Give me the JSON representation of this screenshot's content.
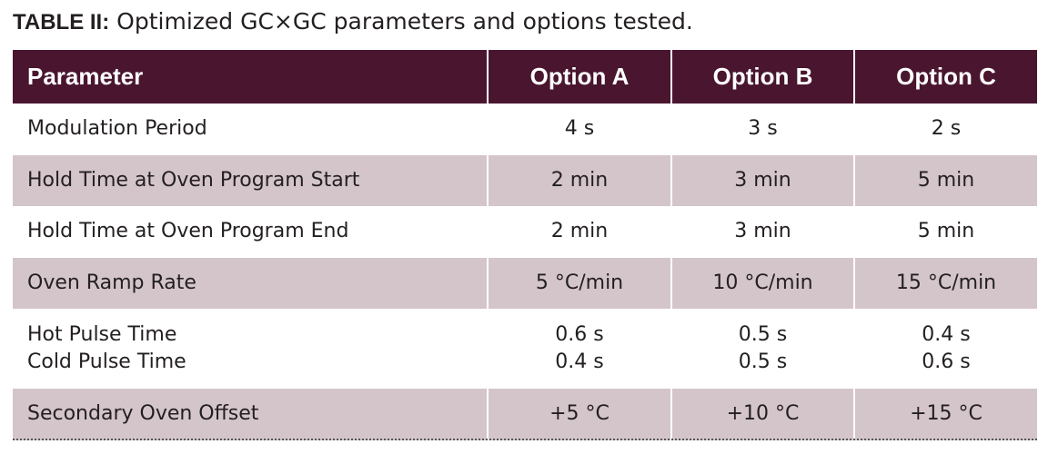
{
  "caption": {
    "label": "TABLE II:",
    "text": " Optimized GC×GC parameters and options tested."
  },
  "table": {
    "headers": [
      "Parameter",
      "Option A",
      "Option B",
      "Option C"
    ],
    "rows": [
      {
        "parameter": [
          "Modulation Period"
        ],
        "a": [
          "4 s"
        ],
        "b": [
          "3 s"
        ],
        "c": [
          "2 s"
        ]
      },
      {
        "parameter": [
          "Hold Time at Oven Program Start"
        ],
        "a": [
          "2 min"
        ],
        "b": [
          "3 min"
        ],
        "c": [
          "5 min"
        ]
      },
      {
        "parameter": [
          "Hold Time at Oven Program End"
        ],
        "a": [
          "2 min"
        ],
        "b": [
          "3 min"
        ],
        "c": [
          "5 min"
        ]
      },
      {
        "parameter": [
          "Oven Ramp Rate"
        ],
        "a": [
          "5 °C/min"
        ],
        "b": [
          "10 °C/min"
        ],
        "c": [
          "15 °C/min"
        ]
      },
      {
        "parameter": [
          "Hot Pulse Time",
          "Cold Pulse Time"
        ],
        "a": [
          "0.6 s",
          "0.4 s"
        ],
        "b": [
          "0.5 s",
          "0.5 s"
        ],
        "c": [
          "0.4 s",
          "0.6 s"
        ]
      },
      {
        "parameter": [
          "Secondary Oven Offset"
        ],
        "a": [
          "+5 °C"
        ],
        "b": [
          "+10 °C"
        ],
        "c": [
          "+15 °C"
        ]
      }
    ]
  },
  "colors": {
    "header_bg": "#4a162f",
    "shaded_row": "#d4c5cb"
  }
}
